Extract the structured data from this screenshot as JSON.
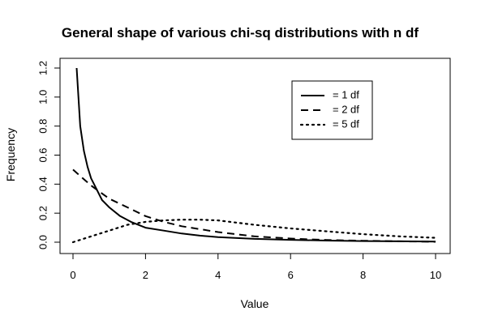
{
  "chart_data": {
    "type": "line",
    "title": "General shape of various chi-sq distributions with n df",
    "xlabel": "Value",
    "ylabel": "Frequency",
    "xlim": [
      0,
      10
    ],
    "ylim": [
      0,
      1.2
    ],
    "x_ticks": [
      0,
      2,
      4,
      6,
      8,
      10
    ],
    "y_ticks": [
      0.0,
      0.2,
      0.4,
      0.6,
      0.8,
      1.0,
      1.2
    ],
    "x_tick_labels": [
      "0",
      "2",
      "4",
      "6",
      "8",
      "10"
    ],
    "y_tick_labels": [
      "0.0",
      "0.2",
      "0.4",
      "0.6",
      "0.8",
      "1.0",
      "1.2"
    ],
    "grid": false,
    "legend_position": "top-right",
    "series": [
      {
        "name": "= 1 df",
        "line_style": "solid",
        "x": [
          0.1,
          0.2,
          0.3,
          0.4,
          0.5,
          0.6,
          0.8,
          1.0,
          1.3,
          1.6,
          2.0,
          2.5,
          3.0,
          3.5,
          4.0,
          5.0,
          6.0,
          7.0,
          8.0,
          9.0,
          10.0
        ],
        "y": [
          1.2,
          0.8,
          0.63,
          0.52,
          0.44,
          0.39,
          0.29,
          0.24,
          0.18,
          0.14,
          0.1,
          0.08,
          0.06,
          0.045,
          0.035,
          0.023,
          0.016,
          0.011,
          0.008,
          0.006,
          0.004
        ]
      },
      {
        "name": "= 2 df",
        "line_style": "dashed",
        "x": [
          0.0,
          0.5,
          1.0,
          1.5,
          2.0,
          2.5,
          3.0,
          3.5,
          4.0,
          5.0,
          6.0,
          7.0,
          8.0,
          9.0,
          10.0
        ],
        "y": [
          0.5,
          0.39,
          0.3,
          0.24,
          0.18,
          0.14,
          0.11,
          0.09,
          0.07,
          0.04,
          0.025,
          0.015,
          0.01,
          0.006,
          0.003
        ]
      },
      {
        "name": "= 5 df",
        "line_style": "dotted",
        "x": [
          0.0,
          0.5,
          1.0,
          1.5,
          2.0,
          2.5,
          3.0,
          3.5,
          4.0,
          5.0,
          6.0,
          7.0,
          8.0,
          9.0,
          10.0
        ],
        "y": [
          0.0,
          0.04,
          0.08,
          0.12,
          0.14,
          0.15,
          0.155,
          0.155,
          0.15,
          0.12,
          0.095,
          0.075,
          0.055,
          0.04,
          0.03
        ]
      }
    ]
  }
}
